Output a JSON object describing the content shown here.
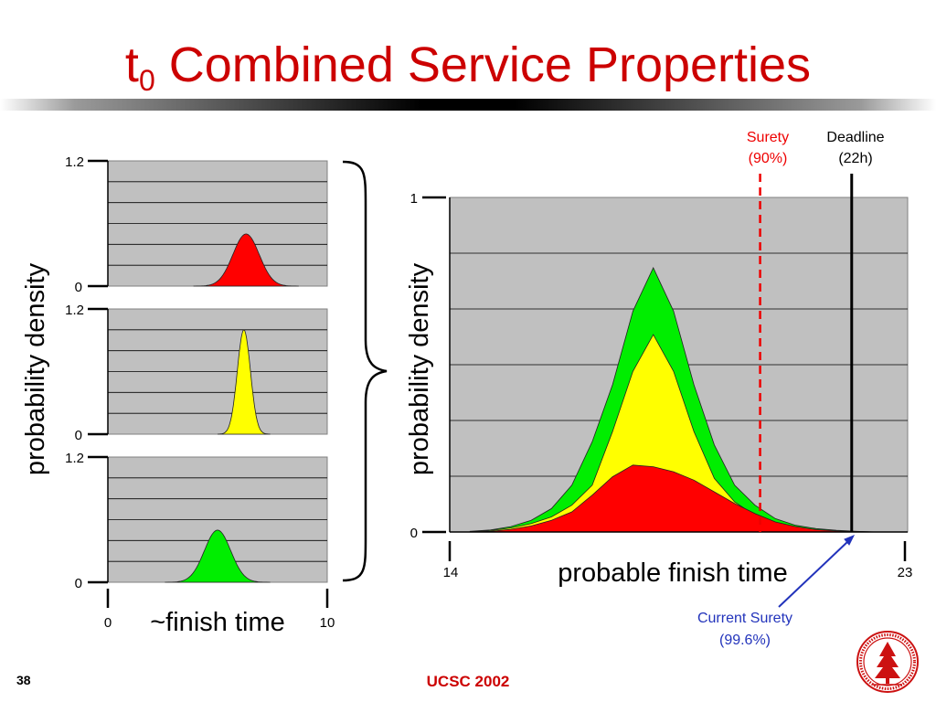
{
  "title": {
    "main": "t",
    "sub": "0",
    "rest": " Combined Service Properties"
  },
  "small_charts": [
    {
      "color": "#ff0000",
      "y_ticks": [
        "1.2",
        "0"
      ],
      "mean": 6.3,
      "sd": 0.6,
      "peak": 0.5,
      "ylim": [
        0,
        1.2
      ],
      "xlim": [
        0,
        10
      ]
    },
    {
      "color": "#ffff00",
      "y_ticks": [
        "1.2",
        "0"
      ],
      "mean": 6.2,
      "sd": 0.3,
      "peak": 1.0,
      "ylim": [
        0,
        1.2
      ],
      "xlim": [
        0,
        10
      ]
    },
    {
      "color": "#00ee00",
      "y_ticks": [
        "1.2",
        "0"
      ],
      "mean": 5.0,
      "sd": 0.6,
      "peak": 0.5,
      "ylim": [
        0,
        1.2
      ],
      "xlim": [
        0,
        10
      ]
    }
  ],
  "small_axis": {
    "ylabel": "probability density",
    "xlabel": "~finish time",
    "x_min_label": "0",
    "x_max_label": "10"
  },
  "chart_data": {
    "type": "area",
    "xlim": [
      14,
      23
    ],
    "ylim": [
      0,
      1
    ],
    "x_min_label": "14",
    "x_max_label": "23",
    "y_max_label": "1",
    "y_min_label": "0",
    "ylabel": "probability density",
    "xlabel": "probable finish time",
    "grid": true,
    "x": [
      14.4,
      14.8,
      15.2,
      15.6,
      16.0,
      16.4,
      16.8,
      17.2,
      17.6,
      18.0,
      18.4,
      18.8,
      19.2,
      19.6,
      20.0,
      20.4,
      20.8,
      21.2,
      21.6,
      22.0,
      22.4
    ],
    "series": [
      {
        "color": "#00ee00",
        "values": [
          0.002,
          0.006,
          0.016,
          0.035,
          0.07,
          0.14,
          0.27,
          0.44,
          0.66,
          0.79,
          0.66,
          0.44,
          0.26,
          0.14,
          0.08,
          0.04,
          0.02,
          0.01,
          0.005,
          0.002,
          0.0
        ]
      },
      {
        "color": "#ffff00",
        "values": [
          0.001,
          0.004,
          0.012,
          0.025,
          0.045,
          0.08,
          0.14,
          0.3,
          0.48,
          0.59,
          0.48,
          0.3,
          0.16,
          0.09,
          0.05,
          0.025,
          0.012,
          0.006,
          0.003,
          0.001,
          0.0
        ]
      },
      {
        "color": "#ff0000",
        "values": [
          0.0,
          0.002,
          0.008,
          0.018,
          0.035,
          0.06,
          0.11,
          0.165,
          0.2,
          0.195,
          0.18,
          0.155,
          0.12,
          0.085,
          0.055,
          0.03,
          0.016,
          0.007,
          0.003,
          0.001,
          0.0
        ]
      }
    ],
    "markers": [
      {
        "label_line1": "Surety",
        "label_line2": "(90%)",
        "x": 20.1,
        "color": "#ee0000",
        "style": "dashed"
      },
      {
        "label_line1": "Deadline",
        "label_line2": "(22h)",
        "x": 21.9,
        "color": "#000000",
        "style": "solid"
      }
    ],
    "annotation": {
      "line1": "Current Surety",
      "line2": "(99.6%)",
      "color": "#2233bb"
    }
  },
  "footer": {
    "page_number": "38",
    "text": "UCSC 2002"
  },
  "seal": {
    "icon": "stanford-seal-icon",
    "color": "#cc1111"
  }
}
